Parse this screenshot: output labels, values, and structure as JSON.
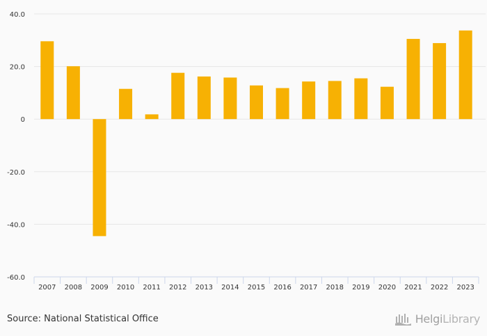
{
  "chart_data": {
    "type": "bar",
    "categories": [
      "2007",
      "2008",
      "2009",
      "2010",
      "2011",
      "2012",
      "2013",
      "2014",
      "2015",
      "2016",
      "2017",
      "2018",
      "2019",
      "2020",
      "2021",
      "2022",
      "2023"
    ],
    "values": [
      29.6,
      20.1,
      -44.5,
      11.5,
      1.8,
      17.6,
      16.2,
      15.8,
      12.8,
      11.8,
      14.3,
      14.5,
      15.5,
      12.3,
      30.5,
      28.9,
      33.7
    ],
    "ylim": [
      -60,
      40
    ],
    "yticks": [
      40,
      20,
      0,
      -20,
      -40,
      -60
    ],
    "ytick_labels": [
      "40.0",
      "20.0",
      "0",
      "-20.0",
      "-40.0",
      "-60.0"
    ],
    "bar_color": "#f7b103",
    "grid": true,
    "title": "",
    "xlabel": "",
    "ylabel": ""
  },
  "footer": {
    "source": "Source: National Statistical Office",
    "brand_part1": "Helgi",
    "brand_part2": "Library"
  },
  "colors": {
    "grid": "#e6e6e6",
    "axis": "#ccd6eb",
    "background": "#fafafa"
  }
}
